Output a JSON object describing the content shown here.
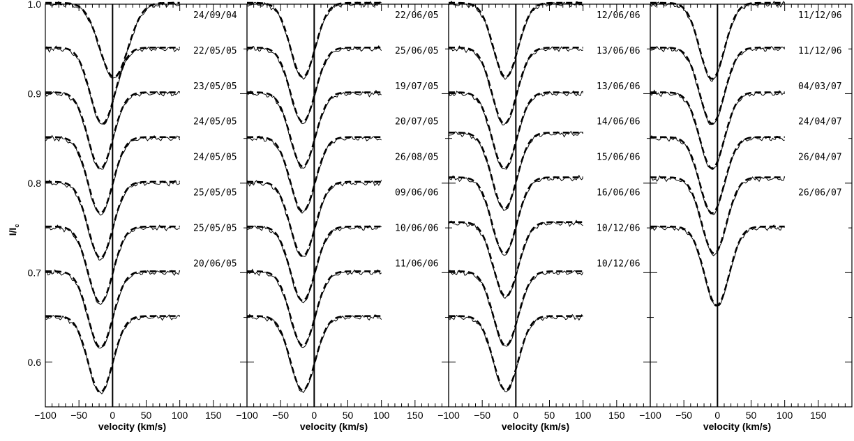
{
  "chart_data": {
    "type": "line",
    "ylabel": "I/I",
    "ylabel_subscript": "c",
    "ylim": [
      0.55,
      1.0
    ],
    "xlim": [
      -100,
      200
    ],
    "x_ticks": [
      -100,
      -50,
      0,
      50,
      100,
      150
    ],
    "x_tick_labels": [
      "−100",
      "−50",
      "0",
      "50",
      "100",
      "150"
    ],
    "y_ticks": [
      0.6,
      0.7,
      0.8,
      0.9,
      1.0
    ],
    "y_tick_labels": [
      "0.6",
      "0.7",
      "0.8",
      "0.9",
      "1.0"
    ],
    "profile_x_range": [
      -100,
      100
    ],
    "offset_step": 0.05,
    "vertical_line_x": 0,
    "line_styles": {
      "observed": "solid",
      "model": "dashed"
    },
    "panels": [
      {
        "xlabel": "velocity (km/s)",
        "profiles": [
          {
            "date": "24/09/04",
            "baseline": 1.0,
            "center": 2,
            "depth": 0.083,
            "width": 30
          },
          {
            "date": "22/05/05",
            "baseline": 0.95,
            "center": -15,
            "depth": 0.085,
            "width": 26
          },
          {
            "date": "23/05/05",
            "baseline": 0.9,
            "center": -18,
            "depth": 0.085,
            "width": 26
          },
          {
            "date": "24/05/05",
            "baseline": 0.85,
            "center": -18,
            "depth": 0.085,
            "width": 26
          },
          {
            "date": "24/05/05",
            "baseline": 0.8,
            "center": -18,
            "depth": 0.085,
            "width": 26
          },
          {
            "date": "25/05/05",
            "baseline": 0.75,
            "center": -18,
            "depth": 0.085,
            "width": 26
          },
          {
            "date": "25/05/05",
            "baseline": 0.7,
            "center": -18,
            "depth": 0.085,
            "width": 26
          },
          {
            "date": "20/06/05",
            "baseline": 0.65,
            "center": -18,
            "depth": 0.085,
            "width": 26
          }
        ]
      },
      {
        "xlabel": "velocity (km/s)",
        "profiles": [
          {
            "date": "22/06/05",
            "baseline": 1.0,
            "center": -17,
            "depth": 0.083,
            "width": 26
          },
          {
            "date": "25/06/05",
            "baseline": 0.95,
            "center": -17,
            "depth": 0.083,
            "width": 26
          },
          {
            "date": "19/07/05",
            "baseline": 0.9,
            "center": -17,
            "depth": 0.083,
            "width": 26
          },
          {
            "date": "20/07/05",
            "baseline": 0.85,
            "center": -17,
            "depth": 0.083,
            "width": 26
          },
          {
            "date": "26/08/05",
            "baseline": 0.8,
            "center": -17,
            "depth": 0.083,
            "width": 26
          },
          {
            "date": "09/06/06",
            "baseline": 0.75,
            "center": -17,
            "depth": 0.083,
            "width": 26
          },
          {
            "date": "10/06/06",
            "baseline": 0.7,
            "center": -17,
            "depth": 0.083,
            "width": 26
          },
          {
            "date": "11/06/06",
            "baseline": 0.65,
            "center": -17,
            "depth": 0.083,
            "width": 26
          }
        ]
      },
      {
        "xlabel": "velocity (km/s)",
        "profiles": [
          {
            "date": "12/06/06",
            "baseline": 1.0,
            "center": -15,
            "depth": 0.083,
            "width": 26
          },
          {
            "date": "13/06/06",
            "baseline": 0.95,
            "center": -17,
            "depth": 0.085,
            "width": 26
          },
          {
            "date": "13/06/06",
            "baseline": 0.9,
            "center": -17,
            "depth": 0.085,
            "width": 26
          },
          {
            "date": "14/06/06",
            "baseline": 0.855,
            "center": -17,
            "depth": 0.085,
            "width": 26
          },
          {
            "date": "15/06/06",
            "baseline": 0.805,
            "center": -17,
            "depth": 0.085,
            "width": 26
          },
          {
            "date": "16/06/06",
            "baseline": 0.755,
            "center": -15,
            "depth": 0.083,
            "width": 26
          },
          {
            "date": "10/12/06",
            "baseline": 0.7,
            "center": -15,
            "depth": 0.083,
            "width": 26
          },
          {
            "date": "10/12/06",
            "baseline": 0.65,
            "center": -15,
            "depth": 0.083,
            "width": 26
          }
        ]
      },
      {
        "xlabel": "velocity (km/s)",
        "profiles": [
          {
            "date": "11/12/06",
            "baseline": 1.0,
            "center": -8,
            "depth": 0.085,
            "width": 26
          },
          {
            "date": "11/12/06",
            "baseline": 0.95,
            "center": -8,
            "depth": 0.085,
            "width": 26
          },
          {
            "date": "04/03/07",
            "baseline": 0.9,
            "center": -8,
            "depth": 0.085,
            "width": 26
          },
          {
            "date": "24/04/07",
            "baseline": 0.85,
            "center": -8,
            "depth": 0.085,
            "width": 26
          },
          {
            "date": "26/04/07",
            "baseline": 0.805,
            "center": -5,
            "depth": 0.085,
            "width": 26
          },
          {
            "date": "26/06/07",
            "baseline": 0.75,
            "center": -1,
            "depth": 0.088,
            "width": 26
          }
        ]
      }
    ]
  }
}
